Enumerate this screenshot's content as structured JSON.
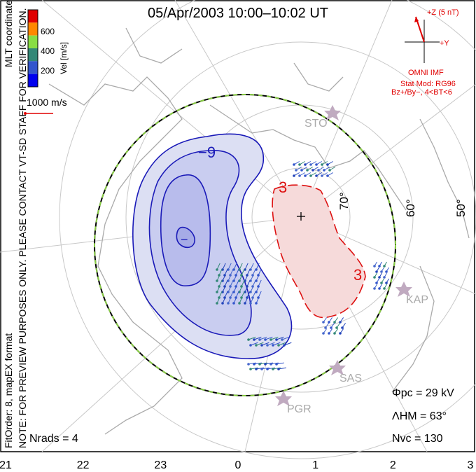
{
  "title": "05/Apr/2003 10:00–10:02 UT",
  "side_note": "NOTE: FOR PREVIEW PURPOSES ONLY. PLEASE CONTACT VT-SD STAFF FOR VERIFICATION.",
  "fit_order": "FitOrder: 8, mapEX format",
  "coords": "MLT coordinates",
  "colorbar": {
    "label": "Vel [m/s]",
    "ticks": [
      "600",
      "400",
      "200"
    ],
    "colors": [
      "#e00000",
      "#ff8800",
      "#88dd44",
      "#338877",
      "#3355cc",
      "#0000ee"
    ]
  },
  "vector_key": "1000 m/s",
  "imf": {
    "bz_label": "+Z (5 nT)",
    "by_label": "+Y",
    "source": "OMNI IMF",
    "model": "Stat Mod: RG96",
    "condition": "Bz+/By−, 4<BT<6"
  },
  "stats": {
    "phi_pc": "Φpc = 29 kV",
    "lambda_hm": "ΛHM = 63°",
    "n_vc": "Nvc = 130",
    "n_rads": "Nrads = 4"
  },
  "sites": [
    "STO",
    "KAP",
    "SAS",
    "PGR"
  ],
  "chart_data": {
    "type": "map",
    "mlt_labels": [
      "21",
      "22",
      "23",
      "0",
      "1",
      "2",
      "3"
    ],
    "latitude_labels": [
      "70°",
      "60°",
      "50°"
    ],
    "contours": [
      {
        "label": "−9",
        "sign": "negative"
      },
      {
        "label": "−",
        "sign": "negative"
      },
      {
        "label": "3",
        "sign": "positive"
      },
      {
        "label": "3",
        "sign": "positive"
      }
    ]
  }
}
